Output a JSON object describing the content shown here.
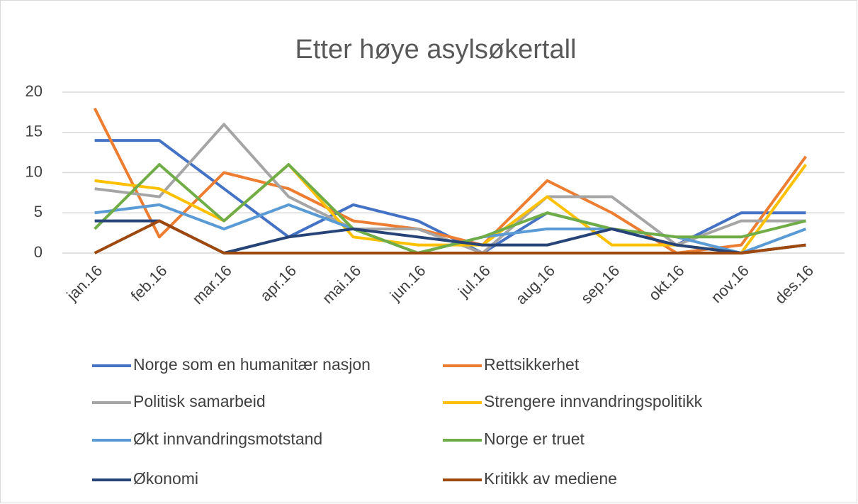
{
  "chart_data": {
    "type": "line",
    "title": "Etter høye asylsøkertall",
    "categories": [
      "jan.16",
      "feb.16",
      "mar.16",
      "apr.16",
      "mai.16",
      "jun.16",
      "jul.16",
      "aug.16",
      "sep.16",
      "okt.16",
      "nov.16",
      "des.16"
    ],
    "ylim": [
      0,
      20
    ],
    "yticks": [
      0,
      5,
      10,
      15,
      20
    ],
    "grid": true,
    "series": [
      {
        "name": "Norge som en humanitær nasjon",
        "color": "#4472c4",
        "values": [
          14,
          14,
          8,
          2,
          6,
          4,
          0,
          5,
          3,
          1,
          5,
          5
        ]
      },
      {
        "name": "Rettsikkerhet",
        "color": "#ed7d31",
        "values": [
          18,
          2,
          10,
          8,
          4,
          3,
          1,
          9,
          5,
          0,
          1,
          12
        ]
      },
      {
        "name": "Politisk samarbeid",
        "color": "#a5a5a5",
        "values": [
          8,
          7,
          16,
          7,
          3,
          3,
          0,
          7,
          7,
          1,
          4,
          4
        ]
      },
      {
        "name": "Strengere innvandringspolitikk",
        "color": "#ffc000",
        "values": [
          9,
          8,
          4,
          11,
          2,
          1,
          1,
          7,
          1,
          1,
          0,
          11
        ]
      },
      {
        "name": "Økt innvandringsmotstand",
        "color": "#5b9bd5",
        "values": [
          5,
          6,
          3,
          6,
          3,
          0,
          2,
          3,
          3,
          2,
          0,
          3
        ]
      },
      {
        "name": "Norge er truet",
        "color": "#70ad47",
        "values": [
          3,
          11,
          4,
          11,
          3,
          0,
          2,
          5,
          3,
          2,
          2,
          4
        ]
      },
      {
        "name": "Økonomi",
        "color": "#264478",
        "values": [
          4,
          4,
          0,
          2,
          3,
          2,
          1,
          1,
          3,
          1,
          0,
          1
        ]
      },
      {
        "name": "Kritikk av mediene",
        "color": "#9e480e",
        "values": [
          0,
          4,
          0,
          0,
          0,
          0,
          0,
          0,
          0,
          0,
          0,
          1
        ]
      }
    ]
  }
}
